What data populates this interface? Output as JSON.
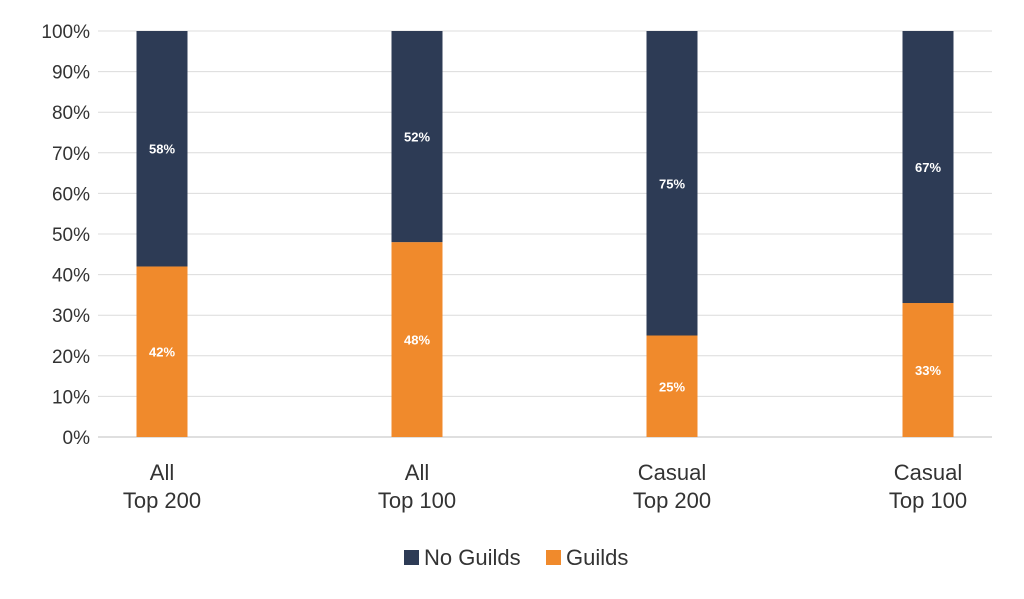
{
  "chart_data": {
    "type": "bar",
    "stacked": true,
    "categories": [
      [
        "All",
        "Top 200"
      ],
      [
        "All",
        "Top 100"
      ],
      [
        "Casual",
        "Top 200"
      ],
      [
        "Casual",
        "Top 100"
      ]
    ],
    "series": [
      {
        "name": "Guilds",
        "values": [
          42,
          48,
          25,
          33
        ],
        "labels": [
          "42%",
          "48%",
          "25%",
          "33%"
        ],
        "color": "#f08a2c"
      },
      {
        "name": "No Guilds",
        "values": [
          58,
          52,
          75,
          67
        ],
        "labels": [
          "58%",
          "52%",
          "75%",
          "67%"
        ],
        "color": "#2d3b55"
      }
    ],
    "ylim": [
      0,
      100
    ],
    "yticks": [
      "0%",
      "10%",
      "20%",
      "30%",
      "40%",
      "50%",
      "60%",
      "70%",
      "80%",
      "90%",
      "100%"
    ],
    "grid": true,
    "legend": {
      "position": "bottom",
      "entries": [
        {
          "label": "No Guilds",
          "color": "#2d3b55"
        },
        {
          "label": "Guilds",
          "color": "#f08a2c"
        }
      ]
    },
    "title": "",
    "xlabel": "",
    "ylabel": ""
  }
}
